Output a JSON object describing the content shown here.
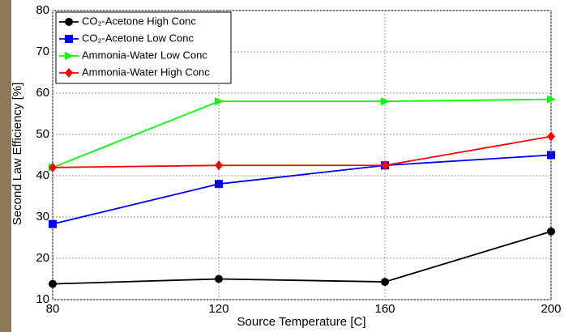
{
  "chart_data": {
    "type": "line",
    "x_label": "Source Temperature [C]",
    "y_label": "Second Law Efficiency [%]",
    "x": [
      80,
      120,
      160,
      200
    ],
    "xlim": [
      80,
      200
    ],
    "xticks": [
      80,
      120,
      160,
      200
    ],
    "ylim": [
      10,
      80
    ],
    "yticks": [
      10,
      20,
      30,
      40,
      50,
      60,
      70,
      80
    ],
    "grid": true,
    "legend": "upper-left",
    "series": [
      {
        "name": "CO₂-Acetone High Conc",
        "color": "#000000",
        "marker": "circle",
        "values": [
          13.8,
          15.0,
          14.3,
          26.5
        ]
      },
      {
        "name": "CO₂-Acetone Low Conc",
        "color": "#0000ff",
        "marker": "square",
        "values": [
          28.3,
          38.0,
          42.5,
          45.0
        ]
      },
      {
        "name": "Ammonia-Water Low Conc",
        "color": "#00ff00",
        "marker": "triangle",
        "values": [
          42.0,
          58.0,
          58.0,
          58.5
        ]
      },
      {
        "name": "Ammonia-Water High Conc",
        "color": "#ff0000",
        "marker": "diamond",
        "values": [
          42.0,
          42.5,
          42.5,
          49.5
        ]
      }
    ]
  }
}
